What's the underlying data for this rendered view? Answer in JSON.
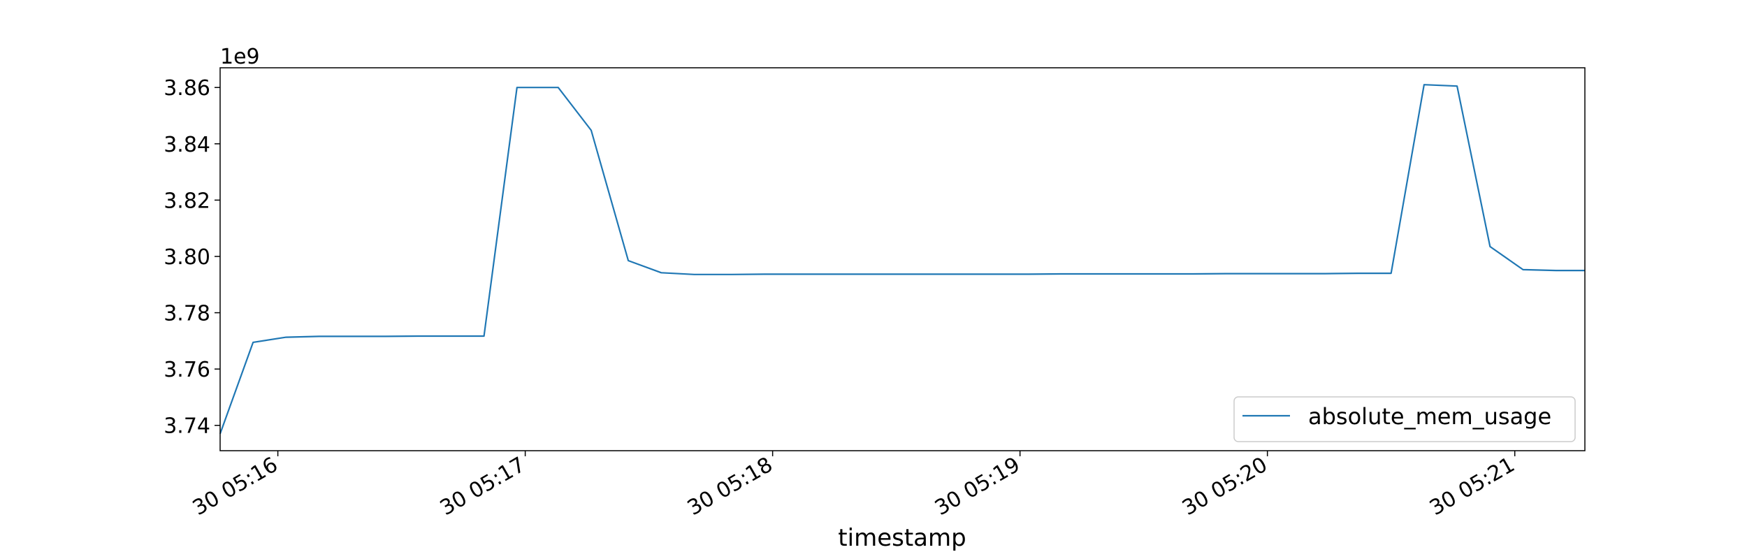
{
  "chart_data": {
    "type": "line",
    "title": "",
    "xlabel": "timestamp",
    "ylabel": "",
    "y_offset_label": "1e9",
    "ylim": [
      3.731,
      3.867
    ],
    "y_ticks": [
      3.74,
      3.76,
      3.78,
      3.8,
      3.82,
      3.84,
      3.86
    ],
    "y_tick_labels": [
      "3.74",
      "3.76",
      "3.78",
      "3.80",
      "3.82",
      "3.84",
      "3.86"
    ],
    "xlim": [
      "05:15:46",
      "05:21:17"
    ],
    "x_ticks": [
      "05:16:00",
      "05:17:00",
      "05:18:00",
      "05:19:00",
      "05:20:00",
      "05:21:00"
    ],
    "x_tick_labels": [
      "30 05:16",
      "30 05:17",
      "30 05:18",
      "30 05:19",
      "30 05:20",
      "30 05:21"
    ],
    "grid": false,
    "legend_position": "bottom-right",
    "series": [
      {
        "name": "absolute_mem_usage",
        "color": "#1f77b4",
        "points": [
          [
            "05:15:46",
            3.737
          ],
          [
            "05:15:54",
            3.7695
          ],
          [
            "05:16:02",
            3.7713
          ],
          [
            "05:16:10",
            3.7716
          ],
          [
            "05:16:18",
            3.7716
          ],
          [
            "05:16:26",
            3.7716
          ],
          [
            "05:16:34",
            3.7717
          ],
          [
            "05:16:42",
            3.7717
          ],
          [
            "05:16:50",
            3.7717
          ],
          [
            "05:16:58",
            3.86
          ],
          [
            "05:17:08",
            3.86
          ],
          [
            "05:17:16",
            3.8448
          ],
          [
            "05:17:25",
            3.7985
          ],
          [
            "05:17:33",
            3.7942
          ],
          [
            "05:17:41",
            3.7936
          ],
          [
            "05:17:50",
            3.7936
          ],
          [
            "05:17:58",
            3.7937
          ],
          [
            "05:18:06",
            3.7937
          ],
          [
            "05:18:14",
            3.7937
          ],
          [
            "05:18:22",
            3.7937
          ],
          [
            "05:18:30",
            3.7937
          ],
          [
            "05:18:38",
            3.7937
          ],
          [
            "05:18:46",
            3.7937
          ],
          [
            "05:18:54",
            3.7937
          ],
          [
            "05:19:02",
            3.7937
          ],
          [
            "05:19:10",
            3.7938
          ],
          [
            "05:19:18",
            3.7938
          ],
          [
            "05:19:26",
            3.7938
          ],
          [
            "05:19:34",
            3.7938
          ],
          [
            "05:19:42",
            3.7938
          ],
          [
            "05:19:50",
            3.7939
          ],
          [
            "05:19:58",
            3.7939
          ],
          [
            "05:20:06",
            3.7939
          ],
          [
            "05:20:14",
            3.7939
          ],
          [
            "05:20:22",
            3.794
          ],
          [
            "05:20:30",
            3.794
          ],
          [
            "05:20:38",
            3.861
          ],
          [
            "05:20:46",
            3.8605
          ],
          [
            "05:20:54",
            3.8035
          ],
          [
            "05:21:02",
            3.7953
          ],
          [
            "05:21:10",
            3.795
          ],
          [
            "05:21:17",
            3.795
          ]
        ]
      }
    ]
  }
}
